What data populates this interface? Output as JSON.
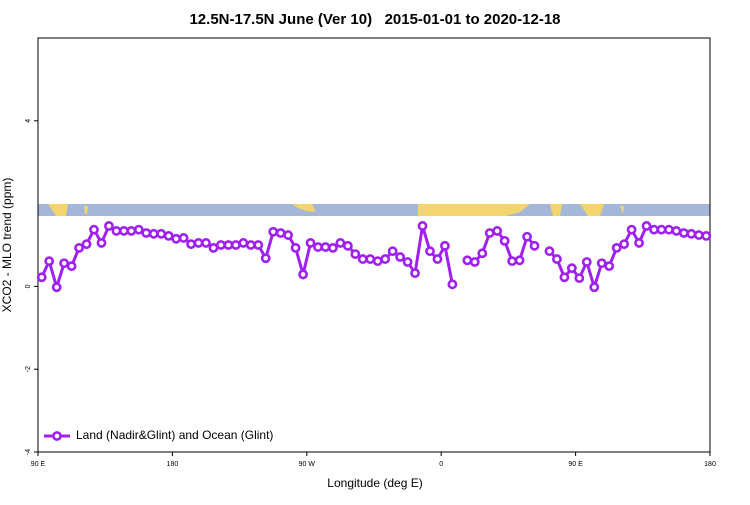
{
  "chart_data": {
    "type": "line",
    "title": "12.5N-17.5N June (Ver 10)   2015-01-01 to 2020-12-18",
    "x_label": "Longitude (deg E)",
    "y_label": "XCO2 - MLO trend (ppm)",
    "x": [
      92.5,
      97.5,
      102.5,
      107.5,
      112.5,
      117.5,
      122.5,
      127.5,
      132.5,
      137.5,
      142.5,
      147.5,
      152.5,
      157.5,
      162.5,
      167.5,
      172.5,
      177.5,
      182.5,
      187.5,
      192.5,
      197.5,
      202.5,
      207.5,
      212.5,
      217.5,
      222.5,
      227.5,
      232.5,
      237.5,
      242.5,
      247.5,
      252.5,
      257.5,
      262.5,
      267.5,
      272.5,
      277.5,
      282.5,
      287.5,
      292.5,
      297.5,
      302.5,
      307.5,
      312.5,
      317.5,
      322.5,
      327.5,
      332.5,
      337.5,
      342.5,
      347.5,
      352.5,
      357.5,
      362.5,
      367.5,
      372.5,
      377.5,
      382.5,
      387.5,
      392.5,
      397.5,
      402.5,
      407.5,
      412.5,
      417.5,
      422.5,
      427.5,
      432.5,
      437.5,
      442.5,
      447.5,
      452.5,
      457.5,
      462.5,
      467.5,
      472.5,
      477.5,
      482.5,
      487.5,
      492.5,
      497.5,
      502.5,
      507.5,
      512.5,
      517.5,
      522.5,
      527.5,
      532.5,
      537.5
    ],
    "series": [
      {
        "name": "Land (Nadir&Glint) and Ocean (Glint)",
        "color": "#a020f0",
        "values": [
          0.22,
          0.61,
          -0.02,
          0.56,
          0.49,
          0.93,
          1.02,
          1.37,
          1.05,
          1.46,
          1.34,
          1.34,
          1.34,
          1.37,
          1.29,
          1.27,
          1.27,
          1.22,
          1.15,
          1.17,
          1.02,
          1.05,
          1.05,
          0.93,
          1.0,
          1.0,
          1.0,
          1.05,
          1.0,
          1.0,
          0.68,
          1.32,
          1.29,
          1.24,
          0.93,
          0.29,
          1.05,
          0.95,
          0.95,
          0.93,
          1.05,
          0.98,
          0.78,
          0.66,
          0.66,
          0.61,
          0.66,
          0.85,
          0.71,
          0.59,
          0.32,
          1.46,
          0.85,
          0.66,
          0.98,
          0.05,
          null,
          0.63,
          0.59,
          0.8,
          1.29,
          1.34,
          1.1,
          0.61,
          0.63,
          1.2,
          0.98,
          null,
          0.85,
          0.66,
          0.22,
          0.44,
          0.2,
          0.59,
          -0.02,
          0.56,
          0.49,
          0.93,
          1.02,
          1.37,
          1.05,
          1.46,
          1.37,
          1.37,
          1.37,
          1.34,
          1.29,
          1.27,
          1.24,
          1.22
        ]
      }
    ],
    "xlim": [
      90,
      540
    ],
    "xticks": [
      {
        "value": 90,
        "label": "90 E"
      },
      {
        "value": 180,
        "label": "180"
      },
      {
        "value": 270,
        "label": "90 W"
      },
      {
        "value": 360,
        "label": "0"
      },
      {
        "value": 450,
        "label": "90 E"
      },
      {
        "value": 540,
        "label": "180"
      }
    ],
    "ylim": [
      -4,
      6
    ],
    "yticks": [
      -4,
      -2,
      0,
      4
    ],
    "legend": "bottom-left"
  }
}
